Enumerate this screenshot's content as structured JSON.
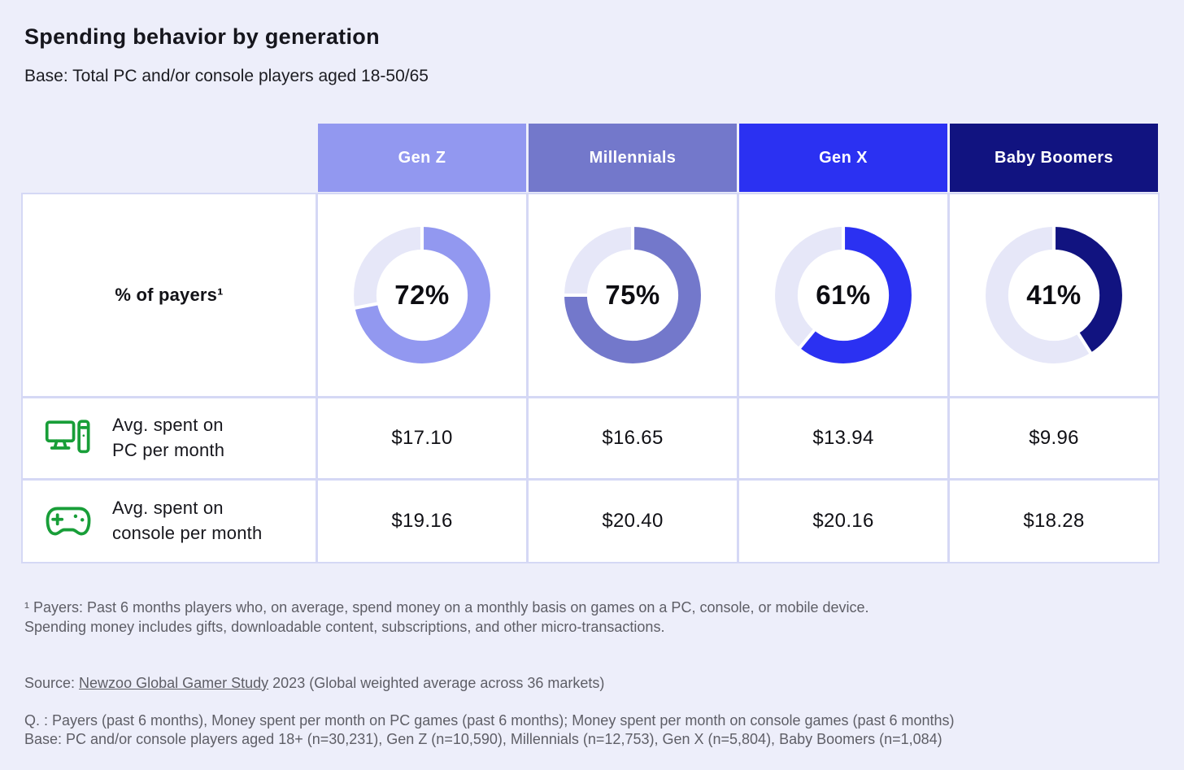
{
  "page": {
    "title": "Spending behavior by generation",
    "subtitle": "Base: Total PC and/or console players aged 18-50/65"
  },
  "colors": {
    "background": "#edeefa",
    "cell": "#ffffff",
    "grid_line": "#d5d8f5",
    "donut_track": "#e6e7f8",
    "icon_green": "#189e38"
  },
  "chart_data": {
    "type": "pie",
    "variant": "donut charts, one per generation column, filled clockwise from 12 o'clock",
    "title": "Spending behavior by generation",
    "subtitle": "Base: Total PC and/or console players aged 18-50/65",
    "categories": [
      "Gen Z",
      "Millennials",
      "Gen X",
      "Baby Boomers"
    ],
    "column_colors": [
      "#9298f0",
      "#7378cb",
      "#2b31f2",
      "#111380"
    ],
    "payers_row_label": "% of payers¹",
    "payers_percent": [
      72,
      75,
      61,
      41
    ],
    "payers_labels": [
      "72%",
      "75%",
      "61%",
      "41%"
    ],
    "spend_rows": [
      {
        "icon": "desktop-pc-icon",
        "label_lines": [
          "Avg. spent on",
          "PC per month"
        ],
        "values": [
          "$17.10",
          "$16.65",
          "$13.94",
          "$9.96"
        ]
      },
      {
        "icon": "gamepad-icon",
        "label_lines": [
          "Avg. spent on",
          "console per month"
        ],
        "values": [
          "$19.16",
          "$20.40",
          "$20.16",
          "$18.28"
        ]
      }
    ]
  },
  "footnotes": {
    "payers_note_lines": [
      "¹ Payers: Past 6 months players who, on average, spend money on a monthly basis on games on a PC, console, or mobile device.",
      "Spending money includes gifts, downloadable content, subscriptions, and other micro-transactions."
    ],
    "source_prefix": "Source: ",
    "source_link": "Newzoo Global Gamer Study",
    "source_suffix": " 2023 (Global weighted average across 36 markets)",
    "q_line": "Q. : Payers (past 6 months), Money spent per month on PC games (past 6 months); Money spent per month on console games (past 6 months)",
    "base_line": "Base: PC and/or console players aged 18+ (n=30,231), Gen Z (n=10,590), Millennials (n=12,753), Gen X (n=5,804), Baby Boomers (n=1,084)"
  }
}
